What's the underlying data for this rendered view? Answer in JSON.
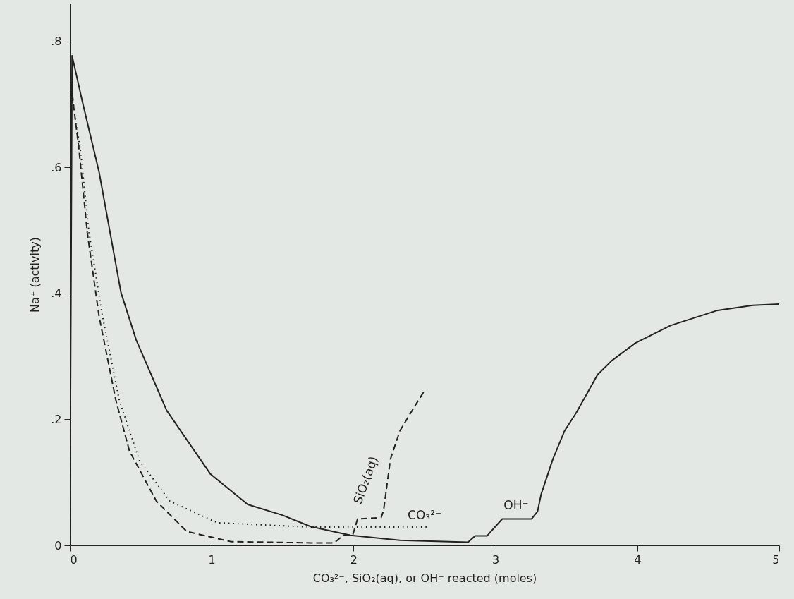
{
  "chart_data": {
    "type": "line",
    "xlabel": "CO₃²⁻, SiO₂(aq), or OH⁻ reacted (moles)",
    "ylabel": "Na⁺ (activity)",
    "xlim": [
      0,
      5
    ],
    "xticks": [
      0,
      1,
      2,
      3,
      4,
      5
    ],
    "ylim": [
      0,
      0.86
    ],
    "yticks": [
      0,
      {
        "value": 0.2,
        "label": ".2"
      },
      {
        "value": 0.4,
        "label": ".4"
      },
      {
        "value": 0.6,
        "label": ".6"
      },
      {
        "value": 0.8,
        "label": ".8"
      }
    ],
    "grid": false,
    "marker": "none",
    "series": [
      {
        "name": "OH⁻",
        "color": "#222222",
        "line_style": "solid",
        "x": [
          0,
          0.016,
          0.088,
          0.206,
          0.361,
          0.468,
          0.683,
          0.992,
          1.254,
          1.498,
          1.697,
          1.979,
          2.327,
          2.807,
          2.857,
          2.94,
          3.048,
          3.255,
          3.297,
          3.322,
          3.405,
          3.488,
          3.571,
          3.72,
          3.819,
          3.985,
          4.234,
          4.566,
          4.814,
          5.0
        ],
        "values": [
          0,
          0.777,
          0.705,
          0.593,
          0.401,
          0.326,
          0.214,
          0.113,
          0.065,
          0.048,
          0.03,
          0.016,
          0.008,
          0.005,
          0.015,
          0.015,
          0.042,
          0.042,
          0.054,
          0.081,
          0.137,
          0.182,
          0.211,
          0.271,
          0.293,
          0.321,
          0.349,
          0.373,
          0.381,
          0.383
        ]
      },
      {
        "name": "SiO₂(aq)",
        "color": "#222222",
        "line_style": "dashed",
        "x": [
          0.011,
          0.028,
          0.064,
          0.123,
          0.206,
          0.325,
          0.42,
          0.611,
          0.825,
          1.134,
          1.697,
          1.862,
          1.929,
          1.995,
          2.028,
          2.194,
          2.211,
          2.26,
          2.327,
          2.426,
          2.493
        ],
        "values": [
          0.732,
          0.695,
          0.63,
          0.497,
          0.364,
          0.23,
          0.15,
          0.07,
          0.022,
          0.006,
          0.004,
          0.004,
          0.016,
          0.017,
          0.042,
          0.044,
          0.055,
          0.137,
          0.182,
          0.219,
          0.243
        ]
      },
      {
        "name": "CO₃²⁻",
        "color": "#222222",
        "line_style": "dotted",
        "x": [
          0.011,
          0.076,
          0.135,
          0.23,
          0.349,
          0.492,
          0.706,
          1.04,
          1.697,
          2.52
        ],
        "values": [
          0.721,
          0.625,
          0.497,
          0.364,
          0.23,
          0.134,
          0.07,
          0.036,
          0.029,
          0.029
        ]
      }
    ]
  }
}
